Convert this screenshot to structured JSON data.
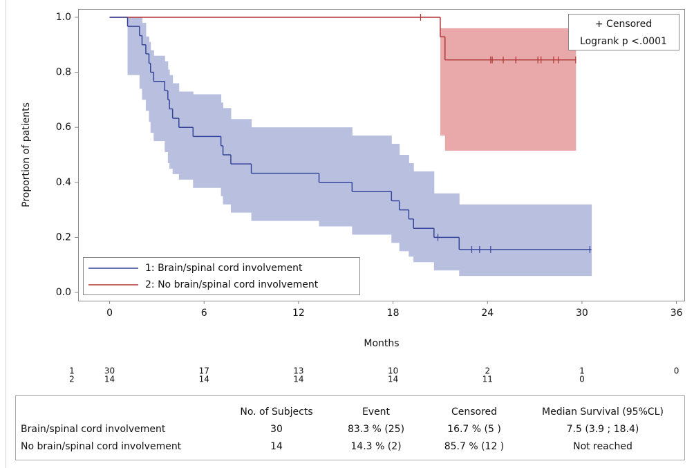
{
  "chart_data": {
    "type": "survival",
    "xlabel": "Months",
    "ylabel": "Proportion of patients",
    "xlim": [
      -2,
      36.5
    ],
    "ylim": [
      -0.03,
      1.03
    ],
    "xticks": [
      0,
      6,
      12,
      18,
      24,
      30,
      36
    ],
    "yticks": [
      {
        "value": 0,
        "label": "0.0"
      },
      0.2,
      0.4,
      0.6,
      0.8,
      {
        "value": 1,
        "label": "1.0"
      }
    ],
    "legend_position": "bottom-left",
    "inset": [
      "+ Censored",
      "Logrank p <.0001"
    ],
    "series": [
      {
        "name": "1: Brain/spinal cord involvement",
        "color": "#34449a",
        "band_color": "#b9bfde",
        "x": [
          0,
          1.14,
          1.9,
          2.06,
          2.3,
          2.5,
          2.6,
          2.8,
          3.5,
          3.7,
          3.8,
          4.0,
          4.4,
          5.3,
          7.07,
          7.2,
          7.7,
          9.0,
          13.3,
          15.4,
          17.9,
          18.4,
          19.0,
          19.3,
          20.6,
          22.2
        ],
        "values": [
          1,
          0.967,
          0.933,
          0.9,
          0.867,
          0.833,
          0.8,
          0.767,
          0.733,
          0.7,
          0.667,
          0.633,
          0.6,
          0.567,
          0.533,
          0.5,
          0.467,
          0.433,
          0.4,
          0.367,
          0.333,
          0.3,
          0.267,
          0.233,
          0.2,
          0.156
        ],
        "ci_lower": [
          null,
          0.79,
          0.74,
          0.7,
          0.66,
          0.62,
          0.58,
          0.55,
          0.51,
          0.47,
          0.45,
          0.43,
          0.41,
          0.38,
          0.35,
          0.32,
          0.29,
          0.26,
          0.24,
          0.21,
          0.18,
          0.15,
          0.13,
          0.11,
          0.08,
          0.06
        ],
        "ci_upper": [
          null,
          1.0,
          1.0,
          0.98,
          0.93,
          0.91,
          0.88,
          0.86,
          0.84,
          0.81,
          0.79,
          0.76,
          0.73,
          0.72,
          0.69,
          0.67,
          0.63,
          0.6,
          0.6,
          0.57,
          0.54,
          0.5,
          0.47,
          0.44,
          0.36,
          0.32
        ],
        "end": 30.6,
        "censored": [
          20.85,
          23.0,
          23.5,
          24.2,
          30.5
        ]
      },
      {
        "name": "2: No brain/spinal cord involvement",
        "color": "#b03434",
        "band_color": "#e9a9ab",
        "x": [
          0,
          21.0,
          21.3
        ],
        "values": [
          1,
          0.929,
          0.845
        ],
        "ci_lower": [
          null,
          0.57,
          0.515
        ],
        "ci_upper": [
          null,
          0.96,
          0.96
        ],
        "end": 29.6,
        "censored": [
          19.75,
          24.2,
          24.3,
          25.0,
          25.8,
          27.2,
          27.4,
          28.2,
          28.5,
          29.6
        ]
      }
    ],
    "risk_table": [
      {
        "label": "1",
        "values": [
          30,
          17,
          13,
          10,
          2,
          1,
          0
        ]
      },
      {
        "label": "2",
        "values": [
          14,
          14,
          14,
          14,
          11,
          0
        ]
      }
    ]
  },
  "summary_table": {
    "header": [
      "No. of Subjects",
      "Event",
      "Censored",
      "Median Survival (95%CL)"
    ],
    "rows": [
      [
        "Brain/spinal cord involvement",
        "30",
        "83.3 % (25)",
        "16.7 % (5 )",
        "7.5 (3.9 ; 18.4)"
      ],
      [
        "No brain/spinal cord involvement",
        "14",
        "14.3 % (2)",
        "85.7 % (12 )",
        "Not reached"
      ]
    ]
  }
}
